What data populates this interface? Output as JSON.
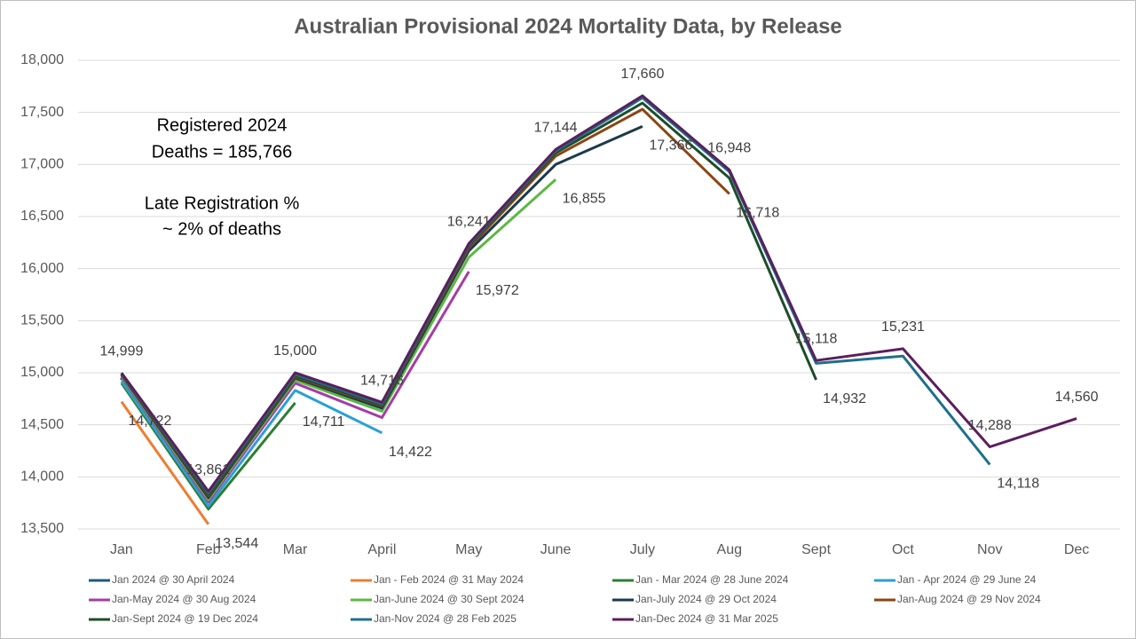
{
  "chart_data": {
    "type": "line",
    "title": "Australian Provisional 2024 Mortality Data, by Release",
    "annotations": [
      "Registered 2024",
      "Deaths = 185,766",
      "Late Registration %",
      "~ 2% of deaths"
    ],
    "categories": [
      "Jan",
      "Feb",
      "Mar",
      "April",
      "May",
      "June",
      "July",
      "Aug",
      "Sept",
      "Oct",
      "Nov",
      "Dec"
    ],
    "ylim": [
      13500,
      18000
    ],
    "yticks": [
      {
        "value": 13500,
        "label": "13,500"
      },
      {
        "value": 14000,
        "label": "14,000"
      },
      {
        "value": 14500,
        "label": "14,500"
      },
      {
        "value": 15000,
        "label": "15,000"
      },
      {
        "value": 15500,
        "label": "15,500"
      },
      {
        "value": 16000,
        "label": "16,000"
      },
      {
        "value": 16500,
        "label": "16,500"
      },
      {
        "value": 17000,
        "label": "17,000"
      },
      {
        "value": 17500,
        "label": "17,500"
      },
      {
        "value": 18000,
        "label": "18,000"
      }
    ],
    "grid": true,
    "series": [
      {
        "name": "Jan 2024 @ 30 April 2024",
        "color": "#1f5a7a",
        "values": [
          14940,
          null,
          null,
          null,
          null,
          null,
          null,
          null,
          null,
          null,
          null,
          null
        ],
        "value_labels": [
          null,
          null,
          null,
          null,
          null,
          null,
          null,
          null,
          null,
          null,
          null,
          null
        ]
      },
      {
        "name": "Jan - Feb 2024 @ 31 May 2024",
        "color": "#ed7d31",
        "values": [
          14722,
          13544,
          null,
          null,
          null,
          null,
          null,
          null,
          null,
          null,
          null,
          null
        ],
        "value_labels": [
          "14,722",
          "13,544",
          null,
          null,
          null,
          null,
          null,
          null,
          null,
          null,
          null,
          null
        ]
      },
      {
        "name": "Jan - Mar 2024 @ 28 June 2024",
        "color": "#2e7d32",
        "values": [
          14900,
          13690,
          14711,
          null,
          null,
          null,
          null,
          null,
          null,
          null,
          null,
          null
        ],
        "value_labels": [
          null,
          null,
          "14,711",
          null,
          null,
          null,
          null,
          null,
          null,
          null,
          null,
          null
        ]
      },
      {
        "name": "Jan - Apr 2024 @ 29 June 24",
        "color": "#2aa0d4",
        "values": [
          14920,
          13720,
          14830,
          14422,
          null,
          null,
          null,
          null,
          null,
          null,
          null,
          null
        ],
        "value_labels": [
          null,
          null,
          null,
          "14,422",
          null,
          null,
          null,
          null,
          null,
          null,
          null,
          null
        ]
      },
      {
        "name": "Jan-May 2024 @ 30 Aug 2024",
        "color": "#a53ca5",
        "values": [
          14960,
          13760,
          14900,
          14570,
          15972,
          null,
          null,
          null,
          null,
          null,
          null,
          null
        ],
        "value_labels": [
          null,
          null,
          null,
          null,
          "15,972",
          null,
          null,
          null,
          null,
          null,
          null,
          null
        ]
      },
      {
        "name": "Jan-June 2024 @ 30 Sept 2024",
        "color": "#5cb843",
        "values": [
          14970,
          13780,
          14930,
          14630,
          16110,
          16855,
          null,
          null,
          null,
          null,
          null,
          null
        ],
        "value_labels": [
          null,
          null,
          null,
          null,
          null,
          "16,855",
          null,
          null,
          null,
          null,
          null,
          null
        ]
      },
      {
        "name": "Jan-July 2024 @ 29 Oct 2024",
        "color": "#1b3a4b",
        "values": [
          14980,
          13800,
          14950,
          14660,
          16170,
          17000,
          17366,
          null,
          null,
          null,
          null,
          null
        ],
        "value_labels": [
          null,
          null,
          null,
          null,
          null,
          null,
          "17,366",
          null,
          null,
          null,
          null,
          null
        ]
      },
      {
        "name": "Jan-Aug 2024 @ 29 Nov 2024",
        "color": "#8b4513",
        "values": [
          14985,
          13820,
          14960,
          14680,
          16200,
          17080,
          17530,
          16718,
          null,
          null,
          null,
          null
        ],
        "value_labels": [
          null,
          null,
          null,
          null,
          null,
          null,
          null,
          "16,718",
          null,
          null,
          null,
          null
        ]
      },
      {
        "name": "Jan-Sept 2024 @ 19 Dec 2024",
        "color": "#1e4d2b",
        "values": [
          14990,
          13830,
          14970,
          14690,
          16220,
          17110,
          17590,
          16870,
          14932,
          null,
          null,
          null
        ],
        "value_labels": [
          null,
          null,
          null,
          null,
          null,
          null,
          null,
          null,
          "14,932",
          null,
          null,
          null
        ]
      },
      {
        "name": "Jan-Nov 2024 @ 28 Feb 2025",
        "color": "#1f6f8b",
        "values": [
          14995,
          13845,
          14985,
          14700,
          16230,
          17130,
          17640,
          16930,
          15090,
          15160,
          14118,
          null
        ],
        "value_labels": [
          null,
          null,
          null,
          null,
          null,
          null,
          null,
          null,
          null,
          null,
          "14,118",
          null
        ]
      },
      {
        "name": "Jan-Dec 2024 @ 31 Mar 2025",
        "color": "#5b1f5b",
        "values": [
          14999,
          13861,
          15000,
          14716,
          16241,
          17144,
          17660,
          16948,
          15118,
          15231,
          14288,
          14560
        ],
        "value_labels": [
          "14,999",
          "13,861",
          "15,000",
          "14,716",
          "16,241",
          "17,144",
          "17,660",
          "16,948",
          "15,118",
          "15,231",
          "14,288",
          "14,560"
        ]
      }
    ]
  }
}
